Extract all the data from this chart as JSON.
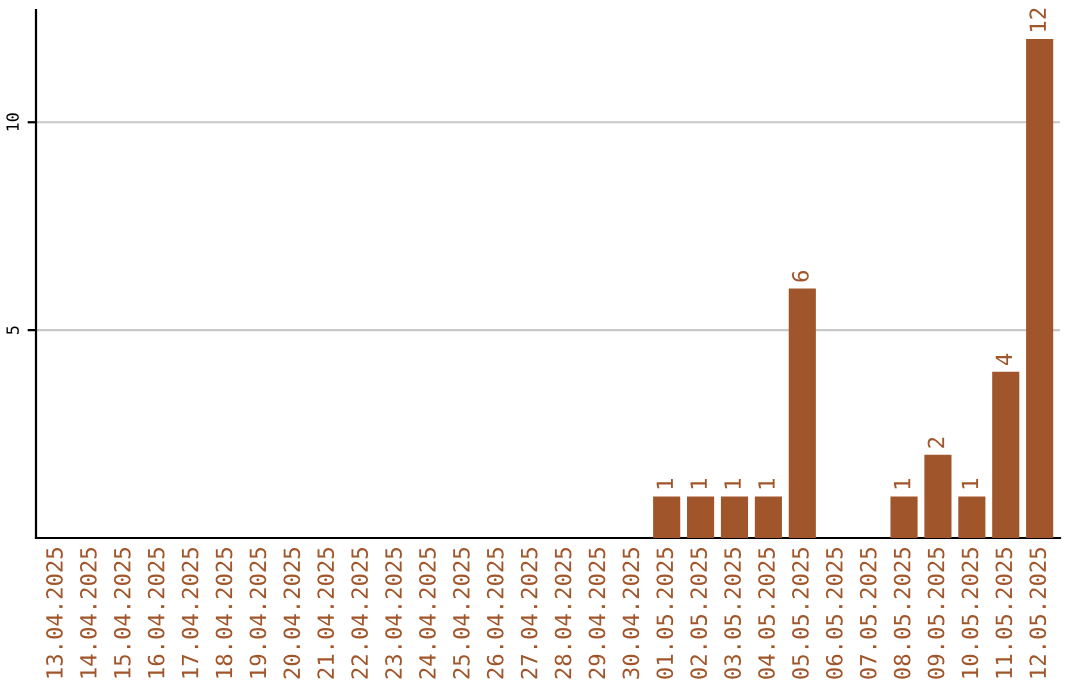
{
  "chart_data": {
    "type": "bar",
    "categories": [
      "13.04.2025",
      "14.04.2025",
      "15.04.2025",
      "16.04.2025",
      "17.04.2025",
      "18.04.2025",
      "19.04.2025",
      "20.04.2025",
      "21.04.2025",
      "22.04.2025",
      "23.04.2025",
      "24.04.2025",
      "25.04.2025",
      "26.04.2025",
      "27.04.2025",
      "28.04.2025",
      "29.04.2025",
      "30.04.2025",
      "01.05.2025",
      "02.05.2025",
      "03.05.2025",
      "04.05.2025",
      "05.05.2025",
      "06.05.2025",
      "07.05.2025",
      "08.05.2025",
      "09.05.2025",
      "10.05.2025",
      "11.05.2025",
      "12.05.2025"
    ],
    "values": [
      0,
      0,
      0,
      0,
      0,
      0,
      0,
      0,
      0,
      0,
      0,
      0,
      0,
      0,
      0,
      0,
      0,
      0,
      1,
      1,
      1,
      1,
      6,
      0,
      0,
      1,
      2,
      1,
      4,
      12
    ],
    "value_labels": [
      null,
      null,
      null,
      null,
      null,
      null,
      null,
      null,
      null,
      null,
      null,
      null,
      null,
      null,
      null,
      null,
      null,
      null,
      "1",
      "1",
      "1",
      "1",
      "6",
      null,
      null,
      "1",
      "2",
      "1",
      "4",
      "12"
    ],
    "color": "#a0562a",
    "ylim": [
      0,
      12.7
    ],
    "yticks": [
      5,
      10
    ],
    "grid": "y"
  }
}
